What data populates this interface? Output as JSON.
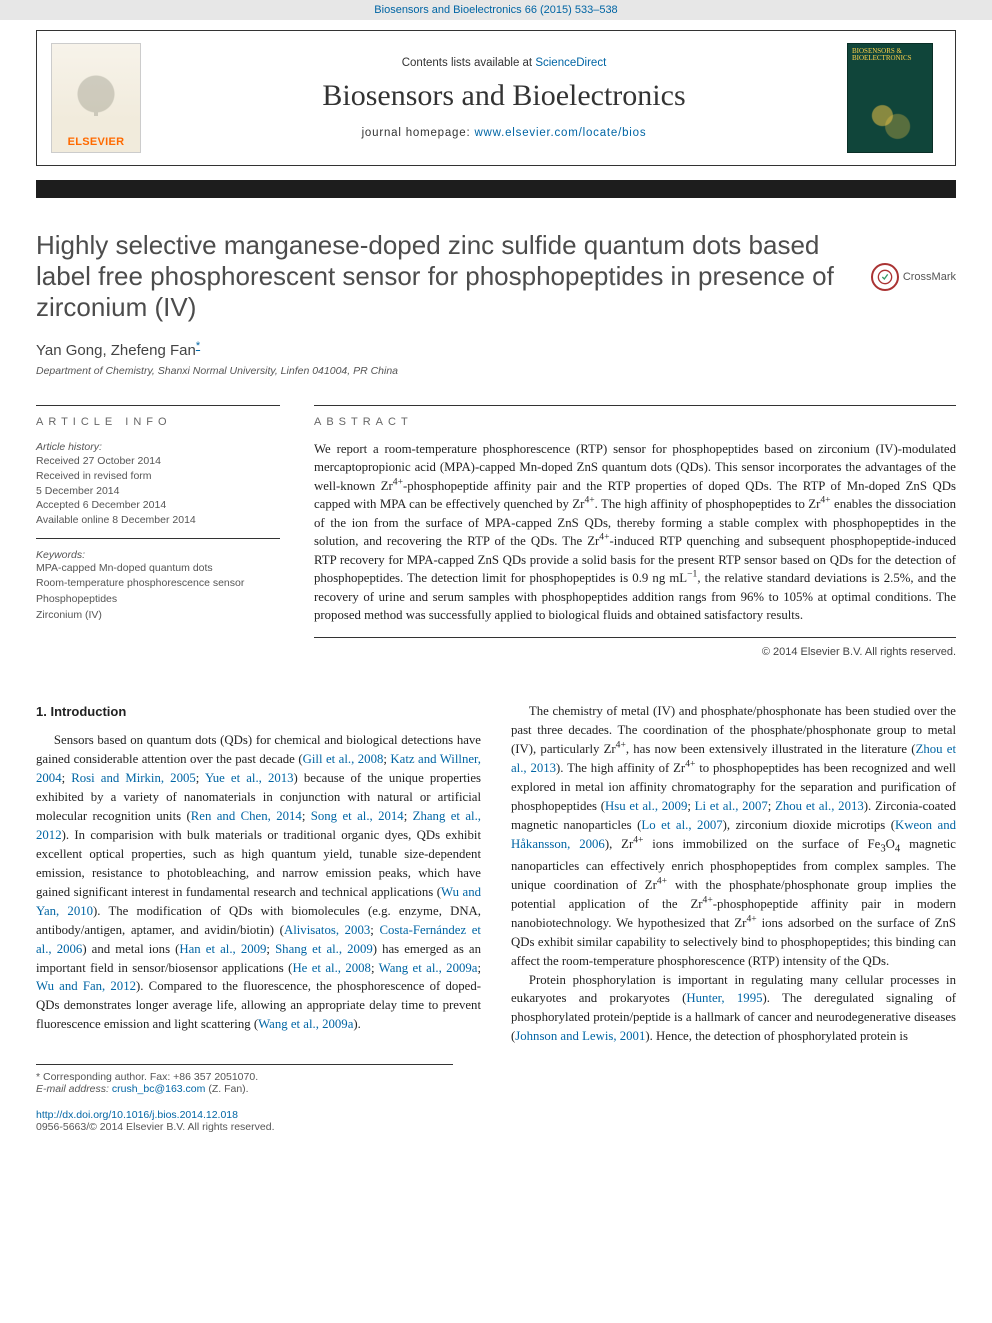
{
  "topbar": {
    "journal_ref": "Biosensors and Bioelectronics 66 (2015) 533–538"
  },
  "masthead": {
    "contents_prefix": "Contents lists available at ",
    "contents_link": "ScienceDirect",
    "journal_name": "Biosensors and Bioelectronics",
    "homepage_prefix": "journal homepage: ",
    "homepage_link": "www.elsevier.com/locate/bios",
    "elsevier_label": "ELSEVIER",
    "cover_title": "BIOSENSORS & BIOELECTRONICS"
  },
  "crossmark_label": "CrossMark",
  "article": {
    "title": "Highly selective manganese-doped zinc sulfide quantum dots based label free phosphorescent sensor for phosphopeptides in presence of zirconium (IV)",
    "authors": "Yan Gong, Zhefeng Fan",
    "corr_mark": "*",
    "affiliation": "Department of Chemistry, Shanxi Normal University, Linfen 041004, PR China"
  },
  "meta": {
    "info_head": "ARTICLE INFO",
    "history_label": "Article history:",
    "history": [
      "Received 27 October 2014",
      "Received in revised form",
      "5 December 2014",
      "Accepted 6 December 2014",
      "Available online 8 December 2014"
    ],
    "keywords_label": "Keywords:",
    "keywords": [
      "MPA-capped Mn-doped quantum dots",
      "Room-temperature phosphorescence sensor",
      "Phosphopeptides",
      "Zirconium (IV)"
    ]
  },
  "abstract": {
    "head": "ABSTRACT",
    "text": "We report a room-temperature phosphorescence (RTP) sensor for phosphopeptides based on zirconium (IV)-modulated mercaptopropionic acid (MPA)-capped Mn-doped ZnS quantum dots (QDs). This sensor incorporates the advantages of the well-known Zr4+-phosphopeptide affinity pair and the RTP properties of doped QDs. The RTP of Mn-doped ZnS QDs capped with MPA can be effectively quenched by Zr4+. The high affinity of phosphopeptides to Zr4+ enables the dissociation of the ion from the surface of MPA-capped ZnS QDs, thereby forming a stable complex with phosphopeptides in the solution, and recovering the RTP of the QDs. The Zr4+-induced RTP quenching and subsequent phosphopeptide-induced RTP recovery for MPA-capped ZnS QDs provide a solid basis for the present RTP sensor based on QDs for the detection of phosphopeptides. The detection limit for phosphopeptides is 0.9 ng mL−1, the relative standard deviations is 2.5%, and the recovery of urine and serum samples with phosphopeptides addition rangs from 96% to 105% at optimal conditions. The proposed method was successfully applied to biological fluids and obtained satisfactory results.",
    "copyright": "© 2014 Elsevier B.V. All rights reserved."
  },
  "body": {
    "section_heading": "1. Introduction",
    "p1a": "Sensors based on quantum dots (QDs) for chemical and biological detections have gained considerable attention over the past decade (",
    "c1": "Gill et al., 2008",
    "s1": "; ",
    "c2": "Katz and Willner, 2004",
    "s2": "; ",
    "c3": "Rosi and Mirkin, 2005",
    "s3": "; ",
    "c4": "Yue et al., 2013",
    "p1b": ") because of the unique properties exhibited by a variety of nanomaterials in conjunction with natural or artificial molecular recognition units (",
    "c5": "Ren and Chen, 2014",
    "s4": "; ",
    "c6": "Song et al., 2014",
    "s5": "; ",
    "c7": "Zhang et al., 2012",
    "p1c": "). In comparision with bulk materials or traditional organic dyes, QDs exhibit excellent optical properties, such as high quantum yield, tunable size-dependent emission, resistance to photobleaching, and narrow emission peaks, which have gained significant interest in fundamental research and technical applications (",
    "c8": "Wu and Yan, 2010",
    "p1d": "). The modification of QDs with biomolecules (e.g. enzyme, DNA, antibody/antigen, aptamer, and avidin/biotin) (",
    "c9": "Alivisatos, 2003",
    "s6": "; ",
    "c10": "Costa-Fernández et al., 2006",
    "p1e": ") and metal ions (",
    "c11": "Han et al., 2009",
    "s7": "; ",
    "c12": "Shang et al., 2009",
    "p1f": ") has emerged as an important field in sensor/biosensor applications (",
    "c13": "He et al., 2008",
    "s8": "; ",
    "c14": "Wang et al., 2009a",
    "s9": "; ",
    "c15": "Wu and Fan, 2012",
    "p1g": "). Compared to the fluorescence, the phosphorescence of doped-QDs demonstrates longer average life, allowing an appropriate delay time to prevent fluorescence emission and light scattering (",
    "c16": "Wang et al., 2009a",
    "p1h": ").",
    "p2a": "The chemistry of metal (IV) and phosphate/phosphonate has been studied over the past three decades. The coordination of the phosphate/phosphonate group to metal (IV), particularly Zr4+, has now been extensively illustrated in the literature (",
    "c17": "Zhou et al., 2013",
    "p2b": "). The high affinity of Zr4+ to phosphopeptides has been recognized and well explored in metal ion affinity chromatography for the separation and purification of phosphopeptides (",
    "c18": "Hsu et al., 2009",
    "s10": "; ",
    "c19": "Li et al., 2007",
    "s11": "; ",
    "c20": "Zhou et al., 2013",
    "p2c": "). Zirconia-coated magnetic nanoparticles (",
    "c21": "Lo et al., 2007",
    "p2d": "), zirconium dioxide microtips (",
    "c22": "Kweon and Håkansson, 2006",
    "p2e": "), Zr4+ ions immobilized on the surface of Fe3O4 magnetic nanoparticles can effectively enrich phosphopeptides from complex samples. The unique coordination of Zr4+ with the phosphate/phosphonate group implies the potential application of the Zr4+-phosphopeptide affinity pair in modern nanobiotechnology. We hypothesized that Zr4+ ions adsorbed on the surface of ZnS QDs exhibit similar capability to selectively bind to phosphopeptides; this binding can affect the room-temperature phosphorescence (RTP) intensity of the QDs.",
    "p3a": "Protein phosphorylation is important in regulating many cellular processes in eukaryotes and prokaryotes (",
    "c23": "Hunter, 1995",
    "p3b": "). The deregulated signaling of phosphorylated protein/peptide is a hallmark of cancer and neurodegenerative diseases (",
    "c24": "Johnson and Lewis, 2001",
    "p3c": "). Hence, the detection of phosphorylated protein is"
  },
  "footnotes": {
    "corr_label": "* Corresponding author. Fax: +86 357 2051070.",
    "email_label": "E-mail address: ",
    "email": "crush_bc@163.com",
    "email_who": " (Z. Fan)."
  },
  "doi": {
    "url": "http://dx.doi.org/10.1016/j.bios.2014.12.018",
    "issn_line": "0956-5663/© 2014 Elsevier B.V. All rights reserved."
  },
  "colors": {
    "link": "#0065a4",
    "elsevier_orange": "#ff6a00",
    "cover_bg": "#10453a"
  }
}
